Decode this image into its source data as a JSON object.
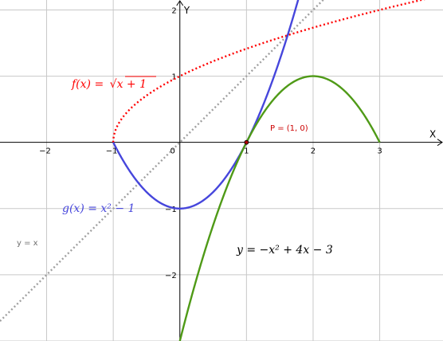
{
  "chart_data": {
    "type": "line",
    "xlim": [
      -2.7,
      3.95
    ],
    "ylim": [
      -3,
      2.15
    ],
    "xticks": [
      -2,
      -1,
      0,
      1,
      2,
      3
    ],
    "yticks": [
      -2,
      -1,
      1,
      2
    ],
    "grid": true,
    "xlabel": "X",
    "ylabel": "Y",
    "functions": {
      "f": {
        "expr": "sqrt(x+1)",
        "domain": [
          -1,
          3.95
        ],
        "style": "dotted",
        "color": "#ff0000"
      },
      "g": {
        "expr": "x^2-1",
        "domain": [
          -1,
          1.8
        ],
        "style": "solid",
        "color": "#4646dc"
      },
      "h": {
        "expr": "-x^2+4x-3",
        "domain": [
          0,
          3
        ],
        "style": "solid",
        "color": "#4f9a17"
      },
      "line": {
        "expr": "x",
        "domain": [
          -2.7,
          2.2
        ],
        "style": "dotted",
        "color": "#a0a0a0"
      }
    },
    "point": {
      "name": "P",
      "x": 1,
      "y": 0,
      "color": "#b00000"
    },
    "labels": {
      "f": {
        "text": [
          "f(x)",
          " = ",
          "√",
          "x + 1"
        ],
        "color": "#ff0000"
      },
      "g": {
        "text": "g(x) = x² − 1",
        "color": "#4646dc"
      },
      "h": {
        "text": "y = −x² + 4x − 3",
        "color": "#000000"
      },
      "line": {
        "text": "y = x",
        "color": "#707070"
      },
      "point": {
        "text": "P = (1, 0)",
        "color": "#cc0000"
      }
    }
  }
}
